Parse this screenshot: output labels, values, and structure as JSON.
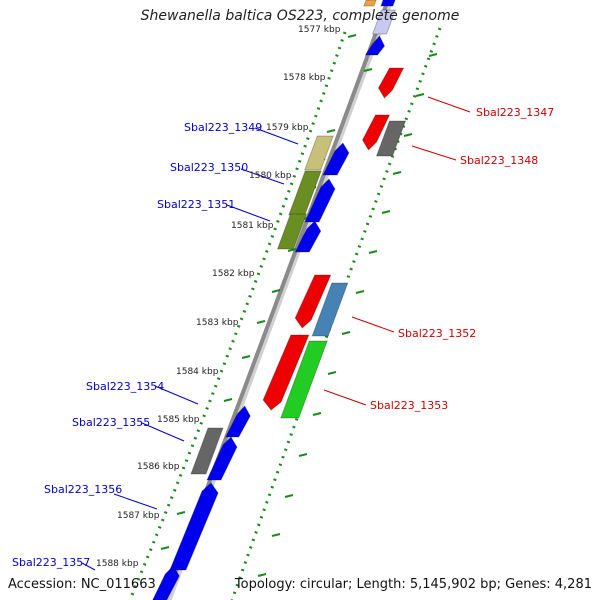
{
  "title": "Shewanella baltica OS223, complete genome",
  "accession": "Accession: NC_011663",
  "topology": "Topology: circular; Length: 5,145,902 bp; Genes: 4,281",
  "scale_labels": [
    "1577 kbp",
    "1578 kbp",
    "1579 kbp",
    "1580 kbp",
    "1581 kbp",
    "1582 kbp",
    "1583 kbp",
    "1584 kbp",
    "1585 kbp",
    "1586 kbp",
    "1587 kbp",
    "1588 kbp"
  ],
  "gene_labels": [
    {
      "text": "Sbal223_1347",
      "color": "#cc0000"
    },
    {
      "text": "Sbal223_1348",
      "color": "#cc0000"
    },
    {
      "text": "Sbal223_1349",
      "color": "#0000cc"
    },
    {
      "text": "Sbal223_1350",
      "color": "#0000cc"
    },
    {
      "text": "Sbal223_1351",
      "color": "#0000cc"
    },
    {
      "text": "Sbal223_1352",
      "color": "#cc0000"
    },
    {
      "text": "Sbal223_1353",
      "color": "#cc0000"
    },
    {
      "text": "Sbal223_1354",
      "color": "#0000cc"
    },
    {
      "text": "Sbal223_1355",
      "color": "#0000cc"
    },
    {
      "text": "Sbal223_1356",
      "color": "#0000cc"
    },
    {
      "text": "Sbal223_1357",
      "color": "#0000cc"
    }
  ],
  "colors": {
    "backbone": "#8a8a8a",
    "dotted_ring": "#1a8a1a",
    "forward_gene": "#0000ee",
    "reverse_gene": "#ee0000",
    "grey_gene": "#666666",
    "olive_gene": "#6b8e23",
    "khaki_gene": "#c8c07a",
    "steel_gene": "#4682b4",
    "lime_gene": "#22cc22"
  }
}
